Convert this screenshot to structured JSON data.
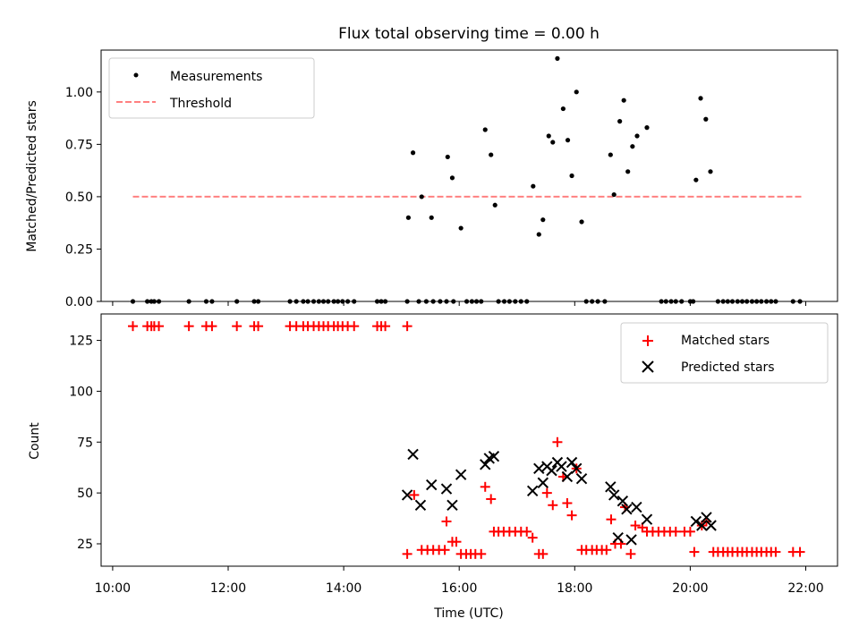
{
  "chart_data": [
    {
      "type": "scatter",
      "title": "Flux total observing time = 0.00 h",
      "ylabel": "Matched/Predicted stars",
      "xlabel": "",
      "x_unit": "hours (UTC)",
      "xlim": [
        9.8,
        22.55
      ],
      "ylim": [
        0,
        1.2
      ],
      "yticks": [
        0.0,
        0.25,
        0.5,
        0.75,
        1.0
      ],
      "ytick_labels": [
        "0.00",
        "0.25",
        "0.50",
        "0.75",
        "1.00"
      ],
      "grid": false,
      "legend": {
        "placement": "upper-left",
        "entries": [
          "Measurements",
          "Threshold"
        ]
      },
      "threshold": {
        "name": "Threshold",
        "value": 0.5,
        "x_range": [
          10.35,
          21.95
        ],
        "color": "#ff8080",
        "style": "dashed"
      },
      "series": [
        {
          "name": "Measurements",
          "marker": "dot",
          "color": "#000000",
          "points": [
            [
              10.35,
              0
            ],
            [
              10.6,
              0
            ],
            [
              10.67,
              0
            ],
            [
              10.72,
              0
            ],
            [
              10.8,
              0
            ],
            [
              11.32,
              0
            ],
            [
              11.62,
              0
            ],
            [
              11.72,
              0
            ],
            [
              12.15,
              0
            ],
            [
              12.45,
              0
            ],
            [
              12.52,
              0
            ],
            [
              13.07,
              0
            ],
            [
              13.18,
              0
            ],
            [
              13.3,
              0
            ],
            [
              13.38,
              0
            ],
            [
              13.48,
              0
            ],
            [
              13.57,
              0
            ],
            [
              13.65,
              0
            ],
            [
              13.73,
              0
            ],
            [
              13.83,
              0
            ],
            [
              13.9,
              0
            ],
            [
              13.98,
              0
            ],
            [
              14.07,
              0
            ],
            [
              14.18,
              0
            ],
            [
              14.58,
              0
            ],
            [
              14.65,
              0
            ],
            [
              14.72,
              0
            ],
            [
              15.1,
              0
            ],
            [
              15.12,
              0.4
            ],
            [
              15.2,
              0.71
            ],
            [
              15.35,
              0.5
            ],
            [
              15.52,
              0.4
            ],
            [
              15.8,
              0.69
            ],
            [
              15.88,
              0.59
            ],
            [
              16.03,
              0.35
            ],
            [
              16.45,
              0.82
            ],
            [
              16.55,
              0.7
            ],
            [
              16.62,
              0.46
            ],
            [
              17.28,
              0.55
            ],
            [
              17.38,
              0.32
            ],
            [
              17.45,
              0.39
            ],
            [
              17.55,
              0.79
            ],
            [
              17.62,
              0.76
            ],
            [
              17.7,
              1.16
            ],
            [
              17.8,
              0.92
            ],
            [
              17.88,
              0.77
            ],
            [
              17.95,
              0.6
            ],
            [
              18.03,
              1.0
            ],
            [
              18.12,
              0.38
            ],
            [
              18.62,
              0.7
            ],
            [
              18.68,
              0.51
            ],
            [
              18.78,
              0.86
            ],
            [
              18.85,
              0.96
            ],
            [
              18.92,
              0.62
            ],
            [
              19.0,
              0.74
            ],
            [
              19.08,
              0.79
            ],
            [
              19.25,
              0.83
            ],
            [
              20.1,
              0.58
            ],
            [
              20.18,
              0.97
            ],
            [
              20.27,
              0.87
            ],
            [
              20.35,
              0.62
            ],
            [
              15.3,
              0
            ],
            [
              15.43,
              0
            ],
            [
              15.55,
              0
            ],
            [
              15.67,
              0
            ],
            [
              15.78,
              0
            ],
            [
              15.9,
              0
            ],
            [
              16.13,
              0
            ],
            [
              16.22,
              0
            ],
            [
              16.3,
              0
            ],
            [
              16.38,
              0
            ],
            [
              16.68,
              0
            ],
            [
              16.78,
              0
            ],
            [
              16.87,
              0
            ],
            [
              16.97,
              0
            ],
            [
              17.07,
              0
            ],
            [
              17.17,
              0
            ],
            [
              18.2,
              0
            ],
            [
              18.3,
              0
            ],
            [
              18.4,
              0
            ],
            [
              18.52,
              0
            ],
            [
              19.5,
              0
            ],
            [
              19.58,
              0
            ],
            [
              19.67,
              0
            ],
            [
              19.75,
              0
            ],
            [
              19.85,
              0
            ],
            [
              20.0,
              0
            ],
            [
              20.05,
              0
            ],
            [
              20.48,
              0
            ],
            [
              20.57,
              0
            ],
            [
              20.65,
              0
            ],
            [
              20.73,
              0
            ],
            [
              20.82,
              0
            ],
            [
              20.9,
              0
            ],
            [
              20.98,
              0
            ],
            [
              21.07,
              0
            ],
            [
              21.15,
              0
            ],
            [
              21.23,
              0
            ],
            [
              21.32,
              0
            ],
            [
              21.4,
              0
            ],
            [
              21.48,
              0
            ],
            [
              21.78,
              0
            ],
            [
              21.9,
              0
            ]
          ]
        }
      ]
    },
    {
      "type": "scatter",
      "title": "",
      "xlabel": "Time (UTC)",
      "ylabel": "Count",
      "x_unit": "hours (UTC)",
      "xlim": [
        9.8,
        22.55
      ],
      "ylim": [
        14,
        138
      ],
      "yticks": [
        25,
        50,
        75,
        100,
        125
      ],
      "ytick_labels": [
        "25",
        "50",
        "75",
        "100",
        "125"
      ],
      "xticks": [
        10,
        12,
        14,
        16,
        18,
        20,
        22
      ],
      "xtick_labels": [
        "10:00",
        "12:00",
        "14:00",
        "16:00",
        "18:00",
        "20:00",
        "22:00"
      ],
      "grid": false,
      "legend": {
        "placement": "upper-right",
        "entries": [
          "Matched stars",
          "Predicted stars"
        ]
      },
      "series": [
        {
          "name": "Matched stars",
          "marker": "plus",
          "color": "#ff0000",
          "points": [
            [
              10.35,
              132
            ],
            [
              10.6,
              132
            ],
            [
              10.67,
              132
            ],
            [
              10.72,
              132
            ],
            [
              10.8,
              132
            ],
            [
              11.32,
              132
            ],
            [
              11.62,
              132
            ],
            [
              11.72,
              132
            ],
            [
              12.15,
              132
            ],
            [
              12.45,
              132
            ],
            [
              12.52,
              132
            ],
            [
              13.07,
              132
            ],
            [
              13.18,
              132
            ],
            [
              13.3,
              132
            ],
            [
              13.38,
              132
            ],
            [
              13.48,
              132
            ],
            [
              13.57,
              132
            ],
            [
              13.65,
              132
            ],
            [
              13.73,
              132
            ],
            [
              13.83,
              132
            ],
            [
              13.9,
              132
            ],
            [
              13.98,
              132
            ],
            [
              14.07,
              132
            ],
            [
              14.18,
              132
            ],
            [
              14.58,
              132
            ],
            [
              14.65,
              132
            ],
            [
              14.72,
              132
            ],
            [
              15.1,
              132
            ],
            [
              15.1,
              20
            ],
            [
              15.22,
              49
            ],
            [
              15.35,
              22
            ],
            [
              15.45,
              22
            ],
            [
              15.55,
              22
            ],
            [
              15.65,
              22
            ],
            [
              15.75,
              22
            ],
            [
              15.78,
              36
            ],
            [
              15.88,
              26
            ],
            [
              15.95,
              26
            ],
            [
              16.03,
              20
            ],
            [
              16.12,
              20
            ],
            [
              16.2,
              20
            ],
            [
              16.28,
              20
            ],
            [
              16.38,
              20
            ],
            [
              16.45,
              53
            ],
            [
              16.55,
              47
            ],
            [
              16.6,
              31
            ],
            [
              16.68,
              31
            ],
            [
              16.77,
              31
            ],
            [
              16.87,
              31
            ],
            [
              16.97,
              31
            ],
            [
              17.07,
              31
            ],
            [
              17.17,
              31
            ],
            [
              17.27,
              28
            ],
            [
              17.38,
              20
            ],
            [
              17.45,
              20
            ],
            [
              17.52,
              50
            ],
            [
              17.62,
              44
            ],
            [
              17.7,
              75
            ],
            [
              17.8,
              58
            ],
            [
              17.87,
              45
            ],
            [
              17.95,
              39
            ],
            [
              18.03,
              62
            ],
            [
              18.12,
              22
            ],
            [
              18.2,
              22
            ],
            [
              18.3,
              22
            ],
            [
              18.38,
              22
            ],
            [
              18.47,
              22
            ],
            [
              18.55,
              22
            ],
            [
              18.63,
              37
            ],
            [
              18.7,
              25
            ],
            [
              18.8,
              25
            ],
            [
              18.87,
              43
            ],
            [
              18.97,
              20
            ],
            [
              19.05,
              34
            ],
            [
              19.17,
              33
            ],
            [
              19.25,
              31
            ],
            [
              19.35,
              31
            ],
            [
              19.45,
              31
            ],
            [
              19.55,
              31
            ],
            [
              19.65,
              31
            ],
            [
              19.75,
              31
            ],
            [
              19.9,
              31
            ],
            [
              20.0,
              31
            ],
            [
              20.07,
              21
            ],
            [
              20.2,
              34
            ],
            [
              20.28,
              36
            ],
            [
              20.4,
              21
            ],
            [
              20.48,
              21
            ],
            [
              20.57,
              21
            ],
            [
              20.65,
              21
            ],
            [
              20.73,
              21
            ],
            [
              20.82,
              21
            ],
            [
              20.9,
              21
            ],
            [
              20.98,
              21
            ],
            [
              21.07,
              21
            ],
            [
              21.15,
              21
            ],
            [
              21.23,
              21
            ],
            [
              21.32,
              21
            ],
            [
              21.4,
              21
            ],
            [
              21.48,
              21
            ],
            [
              21.78,
              21
            ],
            [
              21.9,
              21
            ]
          ]
        },
        {
          "name": "Predicted stars",
          "marker": "x",
          "color": "#000000",
          "points": [
            [
              15.1,
              49
            ],
            [
              15.2,
              69
            ],
            [
              15.33,
              44
            ],
            [
              15.52,
              54
            ],
            [
              15.78,
              52
            ],
            [
              15.88,
              44
            ],
            [
              16.03,
              59
            ],
            [
              16.45,
              64
            ],
            [
              16.52,
              67
            ],
            [
              16.6,
              68
            ],
            [
              17.27,
              51
            ],
            [
              17.38,
              62
            ],
            [
              17.45,
              55
            ],
            [
              17.52,
              63
            ],
            [
              17.6,
              61
            ],
            [
              17.7,
              65
            ],
            [
              17.77,
              63
            ],
            [
              17.87,
              58
            ],
            [
              17.95,
              65
            ],
            [
              18.03,
              62
            ],
            [
              18.12,
              57
            ],
            [
              18.62,
              53
            ],
            [
              18.68,
              49
            ],
            [
              18.75,
              28
            ],
            [
              18.83,
              46
            ],
            [
              18.9,
              42
            ],
            [
              18.98,
              27
            ],
            [
              19.07,
              43
            ],
            [
              19.25,
              37
            ],
            [
              20.1,
              36
            ],
            [
              20.2,
              34
            ],
            [
              20.28,
              38
            ],
            [
              20.36,
              34
            ]
          ]
        }
      ]
    }
  ]
}
